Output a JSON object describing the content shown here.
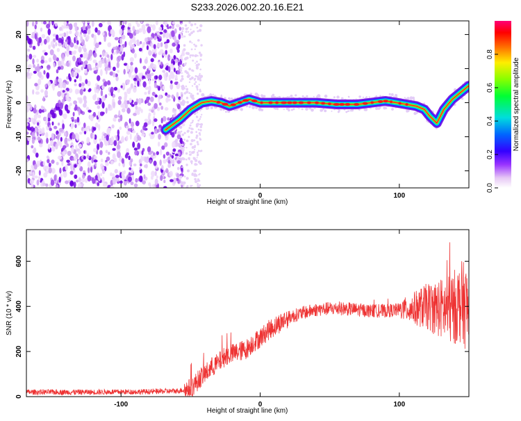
{
  "title": "S233.2026.002.20.16.E21",
  "chart_data": [
    {
      "type": "heatmap",
      "xlabel": "Height of straight line (km)",
      "ylabel": "Frequency (Hz)",
      "xlim": [
        -168,
        150
      ],
      "ylim": [
        -25,
        24
      ],
      "xticks": [
        -100,
        0,
        100
      ],
      "yticks": [
        -20,
        -10,
        0,
        10,
        20
      ],
      "colorbar": {
        "label": "Normalized spectral amplitude",
        "range": [
          0,
          1
        ],
        "ticks": [
          0.0,
          0.2,
          0.4,
          0.6,
          0.8
        ]
      },
      "noise_region_x": [
        -168,
        -57
      ],
      "ridge": {
        "x": [
          -68,
          -58,
          -50,
          -42,
          -35,
          -28,
          -22,
          -15,
          -8,
          0,
          20,
          40,
          55,
          70,
          80,
          90,
          98,
          105,
          112,
          118,
          122,
          127,
          132,
          138,
          144,
          150
        ],
        "y": [
          -8,
          -5,
          -2,
          0,
          0.5,
          0,
          -1,
          0,
          1,
          0,
          0,
          0,
          -0.5,
          -0.5,
          0,
          0.5,
          0,
          -0.5,
          -1,
          -2,
          -4,
          -6,
          -2,
          1,
          3,
          5
        ]
      }
    },
    {
      "type": "line",
      "xlabel": "Height of straight line (km)",
      "ylabel": "SNR (10 * v/v)",
      "xlim": [
        -168,
        150
      ],
      "ylim": [
        0,
        740
      ],
      "xticks": [
        -100,
        0,
        100
      ],
      "yticks": [
        0,
        200,
        400,
        600
      ],
      "series": [
        {
          "name": "SNR",
          "color": "#ee3333",
          "x": [
            -168,
            -120,
            -80,
            -60,
            -50,
            -45,
            -42,
            -38,
            -35,
            -30,
            -25,
            -20,
            -15,
            -10,
            -5,
            0,
            5,
            10,
            15,
            20,
            25,
            30,
            40,
            50,
            60,
            70,
            80,
            90,
            100,
            110,
            120,
            130,
            135,
            140,
            145,
            150
          ],
          "y": [
            20,
            20,
            22,
            25,
            35,
            70,
            90,
            110,
            130,
            150,
            180,
            190,
            200,
            210,
            240,
            260,
            290,
            310,
            330,
            350,
            360,
            370,
            385,
            390,
            390,
            385,
            380,
            380,
            385,
            390,
            400,
            390,
            380,
            400,
            420,
            380
          ]
        }
      ]
    }
  ]
}
